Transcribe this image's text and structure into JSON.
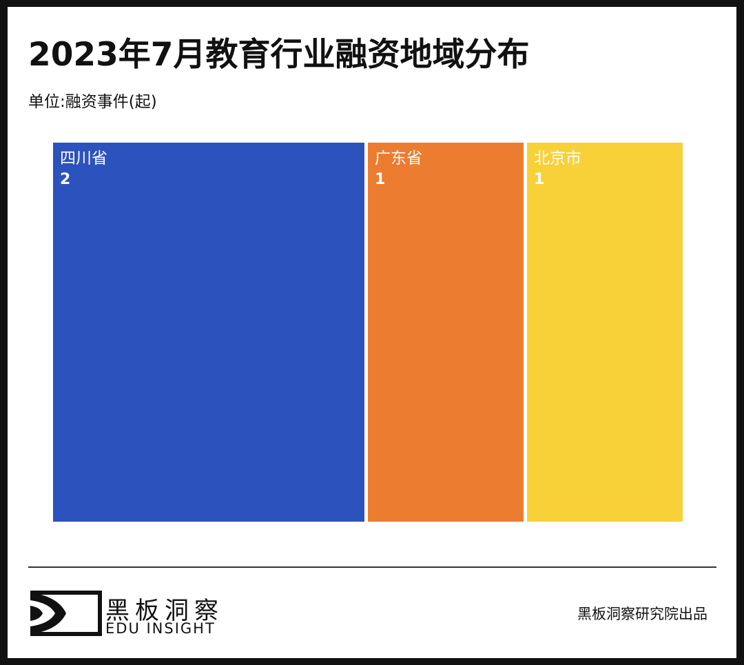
{
  "title": "2023年7月教育行业融资地域分布",
  "subtitle": "单位:融资事件(起)",
  "chart_data": {
    "type": "treemap",
    "title": "2023年7月教育行业融资地域分布",
    "unit": "单位:融资事件(起)",
    "categories": [
      "四川省",
      "广东省",
      "北京市"
    ],
    "values": [
      2,
      1,
      1
    ],
    "colors": [
      "#2c52bd",
      "#ec7c30",
      "#f8d038"
    ]
  },
  "footer": {
    "logo_cn": "黑板洞察",
    "logo_en": "EDU INSIGHT",
    "credit": "黑板洞察研究院出品"
  }
}
